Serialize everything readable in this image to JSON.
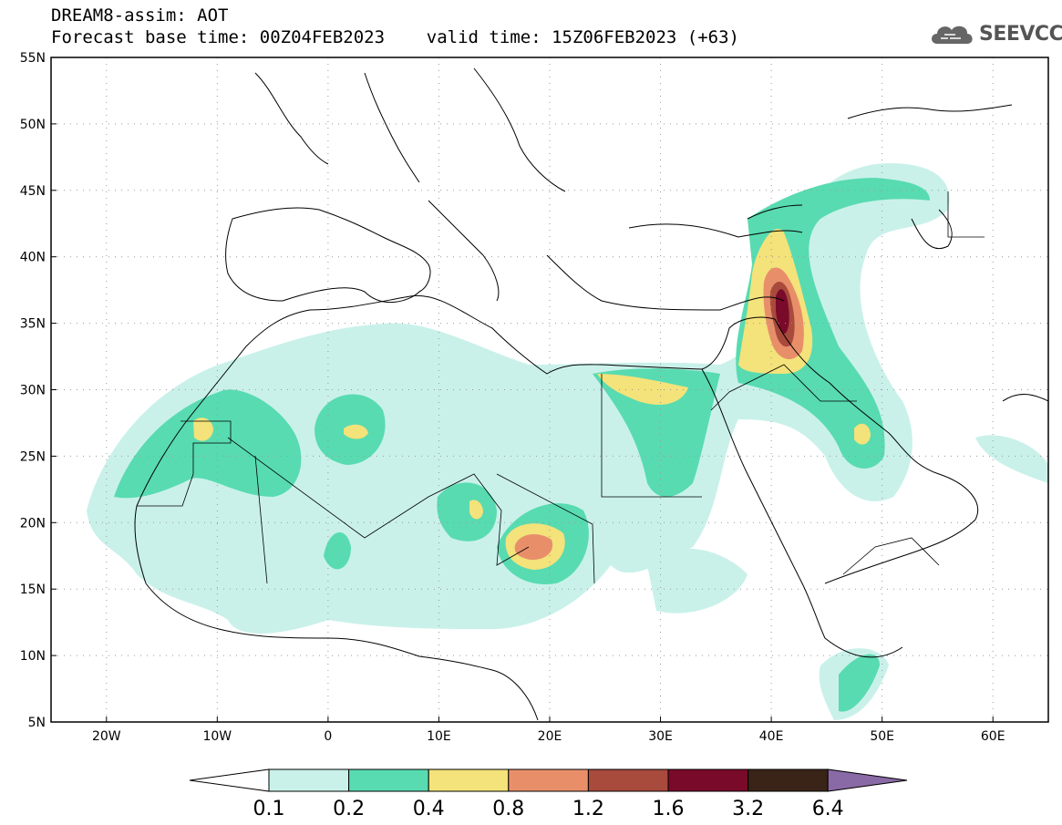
{
  "header": {
    "title_line1": "DREAM8-assim: AOT",
    "title_line2": "Forecast base time: 00Z04FEB2023    valid time: 15Z06FEB2023 (+63)"
  },
  "logo": {
    "text": "SEEVCCC",
    "icon": "cloud-icon",
    "color": "#555555"
  },
  "map": {
    "lon_range": [
      -25,
      65
    ],
    "lat_range": [
      5,
      55
    ],
    "lon_ticks": [
      {
        "value": -20,
        "label": "20W"
      },
      {
        "value": -10,
        "label": "10W"
      },
      {
        "value": 0,
        "label": "0"
      },
      {
        "value": 10,
        "label": "10E"
      },
      {
        "value": 20,
        "label": "20E"
      },
      {
        "value": 30,
        "label": "30E"
      },
      {
        "value": 40,
        "label": "40E"
      },
      {
        "value": 50,
        "label": "50E"
      },
      {
        "value": 60,
        "label": "60E"
      }
    ],
    "lat_ticks": [
      {
        "value": 55,
        "label": "55N"
      },
      {
        "value": 50,
        "label": "50N"
      },
      {
        "value": 45,
        "label": "45N"
      },
      {
        "value": 40,
        "label": "40N"
      },
      {
        "value": 35,
        "label": "35N"
      },
      {
        "value": 30,
        "label": "30N"
      },
      {
        "value": 25,
        "label": "25N"
      },
      {
        "value": 20,
        "label": "20N"
      },
      {
        "value": 15,
        "label": "15N"
      },
      {
        "value": 10,
        "label": "10N"
      },
      {
        "value": 5,
        "label": "5N"
      }
    ],
    "grid": "dotted"
  },
  "colorbar": {
    "colors": [
      "#ffffff",
      "#c9f1ea",
      "#58dbb0",
      "#f4e27a",
      "#e88f6a",
      "#a84a3c",
      "#7a0a2a",
      "#3a2418",
      "#8a6aa6"
    ],
    "labels": [
      "0.1",
      "0.2",
      "0.4",
      "0.8",
      "1.2",
      "1.6",
      "3.2",
      "6.4"
    ]
  }
}
